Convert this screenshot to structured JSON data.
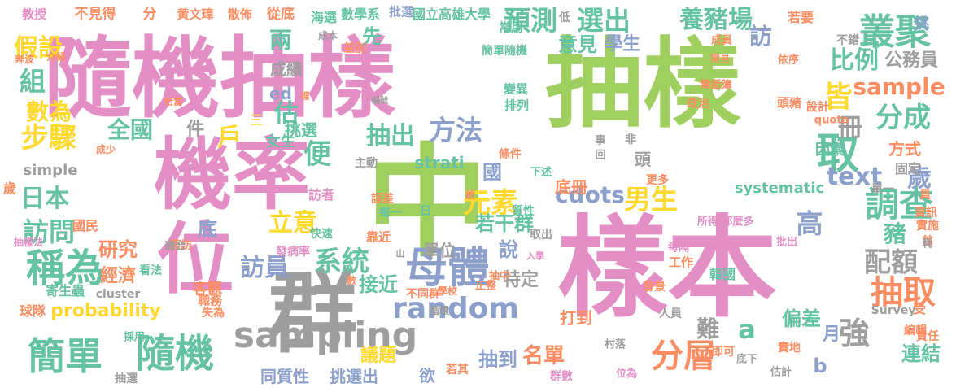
{
  "palette": {
    "pink": "#e38fc6",
    "green": "#9fcf5f",
    "gray": "#9e9e9e",
    "teal": "#66c2a5",
    "orange": "#fc8d62",
    "blue": "#8da0cb",
    "yellow": "#ffd92f",
    "tan": "#e5c494",
    "lime": "#a6d854"
  },
  "words": [
    "抽樣",
    "中",
    "樣本",
    "群",
    "隨機抽樣",
    "機率",
    "位",
    "sampling",
    "母體",
    "分層",
    "隨機",
    "簡單",
    "叢聚",
    "抽取",
    "取",
    "稱為",
    "random",
    "調查",
    "預測",
    "選出",
    "養豬場",
    "學生",
    "比例",
    "公務員",
    "sample",
    "皆",
    "分成",
    "冊",
    "text",
    "歲",
    "方法",
    "抽出",
    "步驟",
    "全國",
    "假設",
    "組",
    "數為",
    "日本",
    "訪問",
    "研究",
    "立意",
    "訪員",
    "系統",
    "元素",
    "男生",
    "cdots",
    "高",
    "配額",
    "豬",
    "probability",
    "經濟",
    "議題",
    "接近",
    "說",
    "特定",
    "若干群",
    "單位",
    "名單",
    "打到",
    "抽到",
    "挑選出",
    "欲",
    "同質性",
    "難",
    "月",
    "強",
    "b",
    "a",
    "連結",
    "偏差",
    "意見",
    "訪",
    "便",
    "戶",
    "估",
    "件",
    "兩",
    "成績",
    "ed",
    "先",
    "挑選",
    "女生",
    "三",
    "strati",
    "國",
    "systematic",
    "底冊",
    "底",
    "訪者",
    "國民",
    "發病率",
    "面訪",
    "客觀",
    "職務",
    "失為",
    "球隊",
    "cluster",
    "抽選",
    "採用",
    "寄生蟲",
    "看法",
    "抽樣法",
    "教授",
    "不見得",
    "分",
    "黃文璋",
    "散佈",
    "從底",
    "海選",
    "數學系",
    "批選",
    "國立高雄大學",
    "常用",
    "低",
    "若要",
    "不錯",
    "成員",
    "依序",
    "常見",
    "挑",
    "簡單隨機",
    "變異",
    "排列",
    "電話簿",
    "政治",
    "頭豬",
    "設計",
    "quota",
    "因素",
    "方式",
    "固定",
    "更多",
    "單一",
    "資訊",
    "實施",
    "背景",
    "工作",
    "首",
    "所得",
    "那麼多",
    "批出",
    "每隔",
    "韓國",
    "人員",
    "即可",
    "實地",
    "受",
    "編輯",
    "Survey",
    "責任",
    "村落",
    "底下",
    "估計",
    "位為",
    "群數",
    "若其",
    "抽中",
    "正整",
    "學校",
    "循環",
    "不同群",
    "靠近",
    "快速",
    "適合",
    "每一",
    "日",
    "誤差",
    "下述",
    "敘",
    "質性",
    "條件",
    "取出",
    "事",
    "回",
    "非",
    "頭",
    "主動",
    "simple",
    "成少",
    "歲",
    "介紹",
    "奔波",
    "恰當",
    "裡",
    "編號",
    "差別",
    "成本",
    "耗",
    "員",
    "入學",
    "山",
    "數"
  ]
}
